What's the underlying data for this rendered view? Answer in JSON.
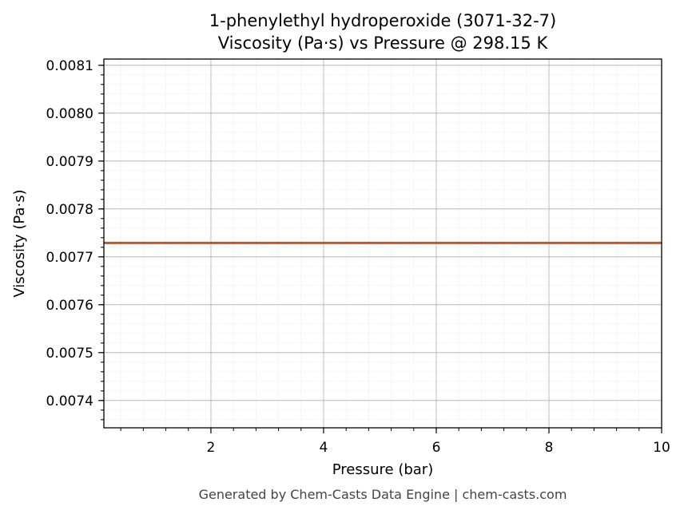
{
  "chart_data": {
    "type": "line",
    "title_line1": "1-phenylethyl hydroperoxide (3071-32-7)",
    "title_line2": "Viscosity (Pa·s) vs Pressure @ 298.15 K",
    "xlabel": "Pressure (bar)",
    "ylabel": "Viscosity (Pa·s)",
    "xlim": [
      0.1,
      10
    ],
    "ylim": [
      0.007343,
      0.008113
    ],
    "xticks": [
      2,
      4,
      6,
      8,
      10
    ],
    "yticks": [
      0.0074,
      0.0075,
      0.0076,
      0.0077,
      0.0078,
      0.0079,
      0.008,
      0.0081
    ],
    "xtick_labels": [
      "2",
      "4",
      "6",
      "8",
      "10"
    ],
    "ytick_labels": [
      "0.0074",
      "0.0075",
      "0.0076",
      "0.0077",
      "0.0078",
      "0.0079",
      "0.0080",
      "0.0081"
    ],
    "grid": true,
    "series": [
      {
        "color": "#c8532a",
        "x": [
          0.1,
          10
        ],
        "y": [
          0.007729,
          0.007729
        ]
      }
    ]
  },
  "footer": "Generated by Chem-Casts Data Engine | chem-casts.com"
}
